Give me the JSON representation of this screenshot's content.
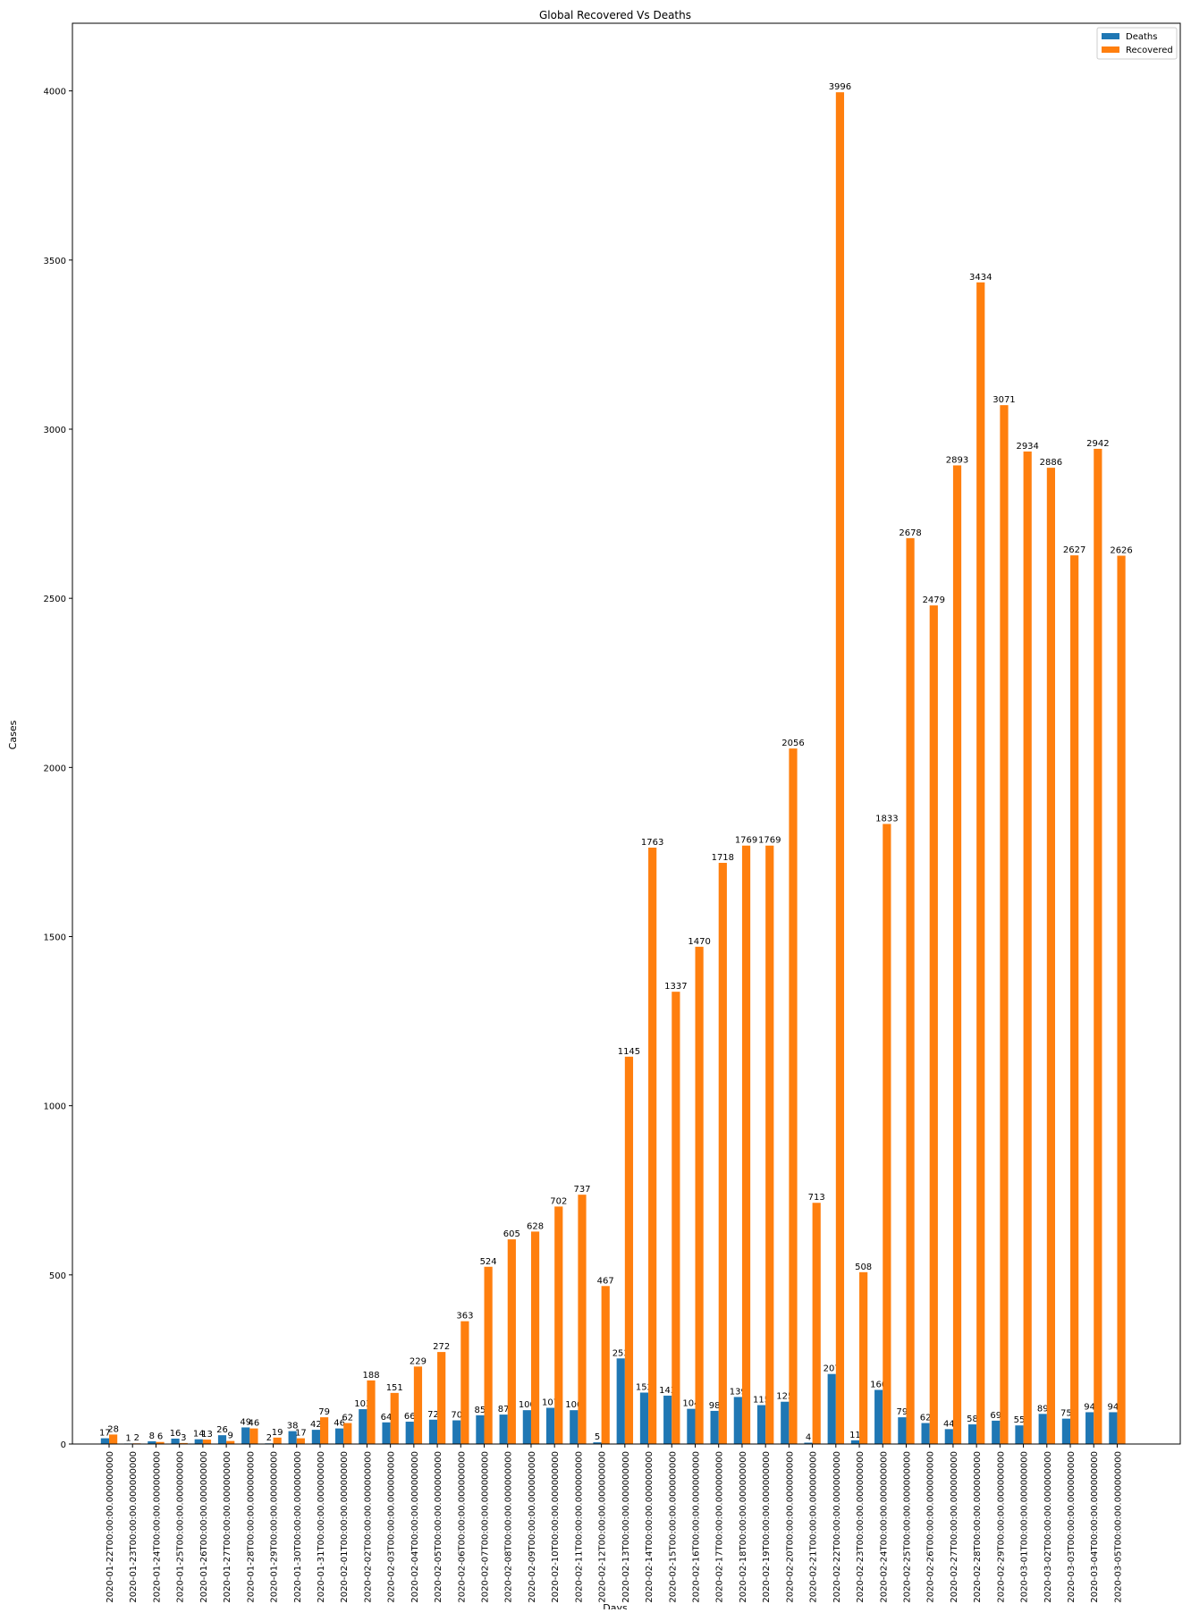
{
  "chart_data": {
    "type": "bar",
    "title": "Global Recovered Vs Deaths",
    "xlabel": "Days",
    "ylabel": "Cases",
    "ylim": [
      0,
      4200
    ],
    "yticks": [
      0,
      500,
      1000,
      1500,
      2000,
      2500,
      3000,
      3500,
      4000
    ],
    "grid": false,
    "legend_position": "top-right",
    "categories": [
      "2020-01-22T00:00:00.000000000",
      "2020-01-23T00:00:00.000000000",
      "2020-01-24T00:00:00.000000000",
      "2020-01-25T00:00:00.000000000",
      "2020-01-26T00:00:00.000000000",
      "2020-01-27T00:00:00.000000000",
      "2020-01-28T00:00:00.000000000",
      "2020-01-29T00:00:00.000000000",
      "2020-01-30T00:00:00.000000000",
      "2020-01-31T00:00:00.000000000",
      "2020-02-01T00:00:00.000000000",
      "2020-02-02T00:00:00.000000000",
      "2020-02-03T00:00:00.000000000",
      "2020-02-04T00:00:00.000000000",
      "2020-02-05T00:00:00.000000000",
      "2020-02-06T00:00:00.000000000",
      "2020-02-07T00:00:00.000000000",
      "2020-02-08T00:00:00.000000000",
      "2020-02-09T00:00:00.000000000",
      "2020-02-10T00:00:00.000000000",
      "2020-02-11T00:00:00.000000000",
      "2020-02-12T00:00:00.000000000",
      "2020-02-13T00:00:00.000000000",
      "2020-02-14T00:00:00.000000000",
      "2020-02-15T00:00:00.000000000",
      "2020-02-16T00:00:00.000000000",
      "2020-02-17T00:00:00.000000000",
      "2020-02-18T00:00:00.000000000",
      "2020-02-19T00:00:00.000000000",
      "2020-02-20T00:00:00.000000000",
      "2020-02-21T00:00:00.000000000",
      "2020-02-22T00:00:00.000000000",
      "2020-02-23T00:00:00.000000000",
      "2020-02-24T00:00:00.000000000",
      "2020-02-25T00:00:00.000000000",
      "2020-02-26T00:00:00.000000000",
      "2020-02-27T00:00:00.000000000",
      "2020-02-28T00:00:00.000000000",
      "2020-02-29T00:00:00.000000000",
      "2020-03-01T00:00:00.000000000",
      "2020-03-02T00:00:00.000000000",
      "2020-03-03T00:00:00.000000000",
      "2020-03-04T00:00:00.000000000",
      "2020-03-05T00:00:00.000000000"
    ],
    "series": [
      {
        "name": "Deaths",
        "color": "#1f77b4",
        "values": [
          17,
          1,
          8,
          16,
          14,
          26,
          49,
          2,
          38,
          42,
          46,
          103,
          64,
          66,
          72,
          70,
          85,
          87,
          100,
          107,
          100,
          5,
          253,
          152,
          143,
          104,
          98,
          139,
          115,
          125,
          4,
          207,
          11,
          160,
          79,
          62,
          44,
          58,
          69,
          55,
          89,
          75,
          94,
          94
        ]
      },
      {
        "name": "Recovered",
        "color": "#ff7f0e",
        "values": [
          28,
          2,
          6,
          3,
          13,
          9,
          46,
          19,
          17,
          79,
          62,
          188,
          151,
          229,
          272,
          363,
          524,
          605,
          628,
          702,
          737,
          467,
          1145,
          1763,
          1337,
          1470,
          1718,
          1769,
          1769,
          2056,
          713,
          3996,
          508,
          1833,
          2678,
          2479,
          2893,
          3434,
          3071,
          2934,
          2886,
          2627,
          2942,
          2626
        ]
      }
    ]
  }
}
